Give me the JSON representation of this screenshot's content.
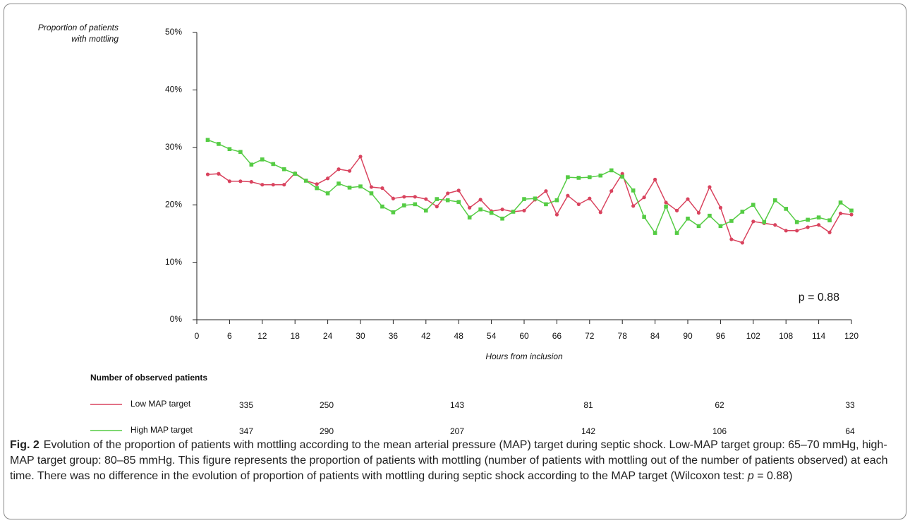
{
  "chart_data": {
    "type": "line",
    "ylabel": [
      "Proportion of patients",
      "with mottling"
    ],
    "xlabel": "Hours from inclusion",
    "annotation": "p = 0.88",
    "x": [
      2,
      4,
      6,
      8,
      10,
      12,
      14,
      16,
      18,
      20,
      22,
      24,
      26,
      28,
      30,
      32,
      34,
      36,
      38,
      40,
      42,
      44,
      46,
      48,
      50,
      52,
      54,
      56,
      58,
      60,
      62,
      64,
      66,
      68,
      70,
      72,
      74,
      76,
      78,
      80,
      82,
      84,
      86,
      88,
      90,
      92,
      94,
      96,
      98,
      100,
      102,
      104,
      106,
      108,
      110,
      112,
      114,
      116,
      118,
      120
    ],
    "series": [
      {
        "name": "Low MAP target",
        "color": "#d9435e",
        "marker": "circle",
        "values": [
          25.3,
          25.4,
          24.1,
          24.1,
          24.0,
          23.5,
          23.5,
          23.5,
          25.5,
          24.2,
          23.6,
          24.6,
          26.2,
          25.9,
          28.4,
          23.1,
          22.9,
          21.1,
          21.4,
          21.4,
          21.0,
          19.7,
          22.0,
          22.5,
          19.5,
          20.9,
          18.9,
          19.2,
          18.8,
          19.0,
          20.9,
          22.4,
          18.3,
          21.6,
          20.1,
          21.1,
          18.7,
          22.4,
          25.4,
          19.8,
          21.3,
          24.4,
          20.4,
          19.0,
          21.0,
          18.6,
          23.1,
          19.5,
          14.0,
          13.4,
          17.1,
          16.8,
          16.5,
          15.5,
          15.5,
          16.1,
          16.5,
          15.2,
          18.5,
          18.3
        ]
      },
      {
        "name": "High MAP target",
        "color": "#55cc44",
        "marker": "square",
        "values": [
          31.3,
          30.6,
          29.7,
          29.2,
          27.0,
          27.9,
          27.1,
          26.2,
          25.4,
          24.2,
          22.9,
          22.0,
          23.7,
          23.0,
          23.2,
          22.0,
          19.7,
          18.7,
          19.9,
          20.1,
          19.0,
          21.0,
          20.8,
          20.5,
          17.8,
          19.2,
          18.6,
          17.6,
          18.8,
          21.0,
          21.1,
          20.1,
          20.8,
          24.8,
          24.7,
          24.8,
          25.1,
          26.0,
          24.9,
          22.5,
          17.9,
          15.1,
          19.7,
          15.1,
          17.6,
          16.3,
          18.1,
          16.3,
          17.2,
          18.8,
          20.0,
          17.0,
          20.8,
          19.3,
          17.0,
          17.4,
          17.8,
          17.3,
          20.4,
          19.0
        ]
      }
    ],
    "xlim": [
      0,
      120
    ],
    "xticks": [
      0,
      6,
      12,
      18,
      24,
      30,
      36,
      42,
      48,
      54,
      60,
      66,
      72,
      78,
      84,
      90,
      96,
      102,
      108,
      114,
      120
    ],
    "ylim": [
      0,
      50
    ],
    "yticks": [
      {
        "value": 0,
        "label": "0%"
      },
      {
        "value": 10,
        "label": "10%"
      },
      {
        "value": 20,
        "label": "20%"
      },
      {
        "value": 30,
        "label": "30%"
      },
      {
        "value": 40,
        "label": "40%"
      },
      {
        "value": 50,
        "label": "50%"
      }
    ]
  },
  "risk_table": {
    "title": "Number of observed patients",
    "rows": [
      [
        335,
        250,
        143,
        81,
        62,
        33
      ],
      [
        347,
        290,
        207,
        142,
        106,
        64
      ]
    ]
  },
  "caption": {
    "label": "Fig. 2",
    "text": "Evolution of the proportion of patients with mottling according to the mean arterial pressure (MAP) target during septic shock. Low-MAP target group: 65–70 mmHg, high-MAP target group: 80–85 mmHg. This figure represents the proportion of patients with mottling (number of patients with mottling out of the number of patients observed) at each time. There was no difference in the evolution of proportion of patients with mottling during septic shock according to the MAP target (Wilcoxon test: ",
    "p": "p",
    "end": " = 0.88)"
  }
}
